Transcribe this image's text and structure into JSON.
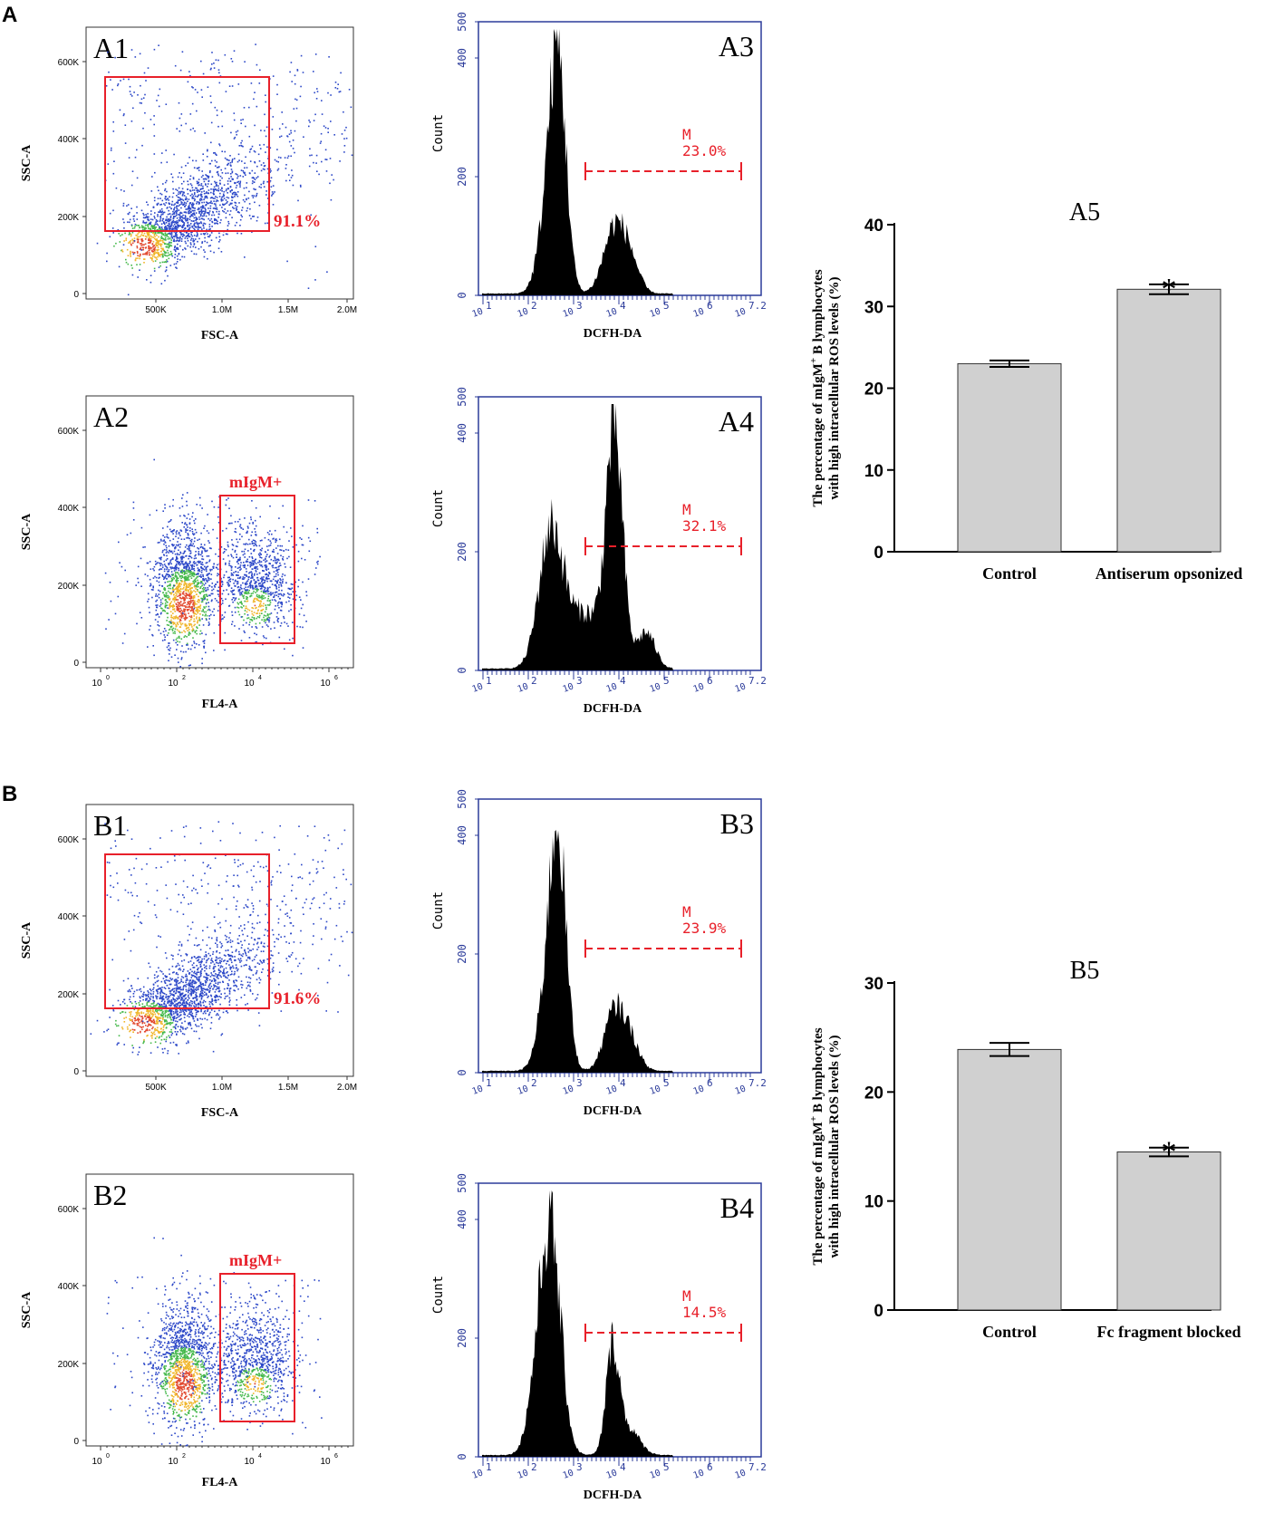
{
  "panels": {
    "A": {
      "label": "A",
      "scatter_fsc": {
        "label": "A1",
        "xlabel": "FSC-A",
        "ylabel": "SSC-A",
        "xticks": [
          "500K",
          "1.0M",
          "1.5M",
          "2.0M"
        ],
        "yticks": [
          "0",
          "200K",
          "400K",
          "600K"
        ],
        "gate_pct": "91.1%"
      },
      "scatter_fl4": {
        "label": "A2",
        "xlabel": "FL4-A",
        "ylabel": "SSC-A",
        "xticks": [
          "10",
          "10",
          "10",
          "10"
        ],
        "xexps": [
          "0",
          "2",
          "4",
          "6"
        ],
        "yticks": [
          "0",
          "200K",
          "400K",
          "600K"
        ],
        "gate_label": "mIgM+"
      },
      "hist_top": {
        "label": "A3",
        "xlabel": "DCFH-DA",
        "ylabel": "Count",
        "yticks": [
          "0",
          "200",
          "400",
          "500"
        ],
        "marker": "M",
        "pct": "23.0%"
      },
      "hist_bottom": {
        "label": "A4",
        "xlabel": "DCFH-DA",
        "ylabel": "Count",
        "yticks": [
          "0",
          "200",
          "400",
          "500"
        ],
        "marker": "M",
        "pct": "32.1%"
      }
    },
    "B": {
      "label": "B",
      "scatter_fsc": {
        "label": "B1",
        "xlabel": "FSC-A",
        "ylabel": "SSC-A",
        "xticks": [
          "500K",
          "1.0M",
          "1.5M",
          "2.0M"
        ],
        "yticks": [
          "0",
          "200K",
          "400K",
          "600K"
        ],
        "gate_pct": "91.6%"
      },
      "scatter_fl4": {
        "label": "B2",
        "xlabel": "FL4-A",
        "ylabel": "SSC-A",
        "xticks": [
          "10",
          "10",
          "10",
          "10"
        ],
        "xexps": [
          "0",
          "2",
          "4",
          "6"
        ],
        "yticks": [
          "0",
          "200K",
          "400K",
          "600K"
        ],
        "gate_label": "mIgM+"
      },
      "hist_top": {
        "label": "B3",
        "xlabel": "DCFH-DA",
        "ylabel": "Count",
        "yticks": [
          "0",
          "200",
          "400",
          "500"
        ],
        "marker": "M",
        "pct": "23.9%"
      },
      "hist_bottom": {
        "label": "B4",
        "xlabel": "DCFH-DA",
        "ylabel": "Count",
        "yticks": [
          "0",
          "200",
          "400",
          "500"
        ],
        "marker": "M",
        "pct": "14.5%"
      }
    }
  },
  "hist_xticks": [
    "10",
    "10",
    "10",
    "10",
    "10",
    "10",
    "10"
  ],
  "hist_xexps": [
    "1",
    "2",
    "3",
    "4",
    "5",
    "6",
    "7.2"
  ],
  "colors": {
    "gate": "#e8202a",
    "axis_blue": "#2b3b9a",
    "bar_gray": "#d0d0d0",
    "scatter_blue": "#2c48c8"
  },
  "chart_data": [
    {
      "type": "bar",
      "title": "A5",
      "categories": [
        "Control",
        "Antiserum opsonized"
      ],
      "values": [
        23.0,
        32.1
      ],
      "errors": [
        0.4,
        0.6
      ],
      "significance": [
        "",
        "*"
      ],
      "ylabel_line1": "The percentage of mIgM",
      "ylabel_sup": "+",
      "ylabel_line1b": " B lymphocytes",
      "ylabel_line2": "with high intracellular ROS levels (%)",
      "ylim": [
        0,
        40
      ],
      "yticks": [
        "0",
        "10",
        "20",
        "30",
        "40"
      ]
    },
    {
      "type": "bar",
      "title": "B5",
      "categories": [
        "Control",
        "Fc fragment blocked"
      ],
      "values": [
        23.9,
        14.5
      ],
      "errors": [
        0.6,
        0.4
      ],
      "significance": [
        "",
        "*"
      ],
      "ylabel_line1": "The percentage of mIgM",
      "ylabel_sup": "+",
      "ylabel_line1b": " B lymphocytes",
      "ylabel_line2": "with high intracellular ROS levels (%)",
      "ylim": [
        0,
        30
      ],
      "yticks": [
        "0",
        "10",
        "20",
        "30"
      ]
    }
  ]
}
